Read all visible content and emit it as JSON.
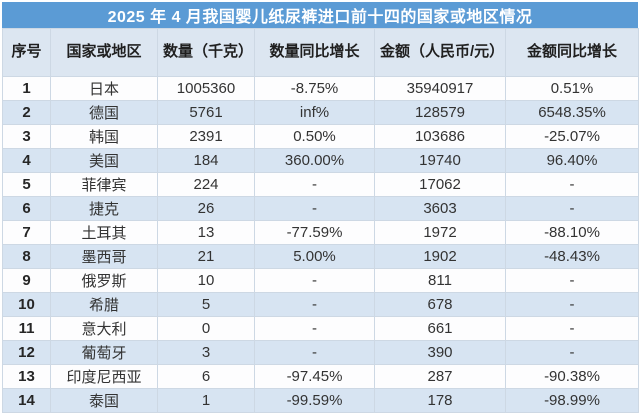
{
  "chart_data": {
    "type": "table",
    "title": "2025 年 4 月我国婴儿纸尿裤进口前十四的国家或地区情况",
    "columns": [
      "序号",
      "国家或地区",
      "数量（千克）",
      "数量同比增长",
      "金额（人民币/元）",
      "金额同比增长"
    ],
    "rows": [
      {
        "index": "1",
        "country": "日本",
        "quantity_kg": "1005360",
        "quantity_yoy": "-8.75%",
        "amount_rmb": "35940917",
        "amount_yoy": "0.51%"
      },
      {
        "index": "2",
        "country": "德国",
        "quantity_kg": "5761",
        "quantity_yoy": "inf%",
        "amount_rmb": "128579",
        "amount_yoy": "6548.35%"
      },
      {
        "index": "3",
        "country": "韩国",
        "quantity_kg": "2391",
        "quantity_yoy": "0.50%",
        "amount_rmb": "103686",
        "amount_yoy": "-25.07%"
      },
      {
        "index": "4",
        "country": "美国",
        "quantity_kg": "184",
        "quantity_yoy": "360.00%",
        "amount_rmb": "19740",
        "amount_yoy": "96.40%"
      },
      {
        "index": "5",
        "country": "菲律宾",
        "quantity_kg": "224",
        "quantity_yoy": "-",
        "amount_rmb": "17062",
        "amount_yoy": "-"
      },
      {
        "index": "6",
        "country": "捷克",
        "quantity_kg": "26",
        "quantity_yoy": "-",
        "amount_rmb": "3603",
        "amount_yoy": "-"
      },
      {
        "index": "7",
        "country": "土耳其",
        "quantity_kg": "13",
        "quantity_yoy": "-77.59%",
        "amount_rmb": "1972",
        "amount_yoy": "-88.10%"
      },
      {
        "index": "8",
        "country": "墨西哥",
        "quantity_kg": "21",
        "quantity_yoy": "5.00%",
        "amount_rmb": "1902",
        "amount_yoy": "-48.43%"
      },
      {
        "index": "9",
        "country": "俄罗斯",
        "quantity_kg": "10",
        "quantity_yoy": "-",
        "amount_rmb": "811",
        "amount_yoy": "-"
      },
      {
        "index": "10",
        "country": "希腊",
        "quantity_kg": "5",
        "quantity_yoy": "-",
        "amount_rmb": "678",
        "amount_yoy": "-"
      },
      {
        "index": "11",
        "country": "意大利",
        "quantity_kg": "0",
        "quantity_yoy": "-",
        "amount_rmb": "661",
        "amount_yoy": "-"
      },
      {
        "index": "12",
        "country": "葡萄牙",
        "quantity_kg": "3",
        "quantity_yoy": "-",
        "amount_rmb": "390",
        "amount_yoy": "-"
      },
      {
        "index": "13",
        "country": "印度尼西亚",
        "quantity_kg": "6",
        "quantity_yoy": "-97.45%",
        "amount_rmb": "287",
        "amount_yoy": "-90.38%"
      },
      {
        "index": "14",
        "country": "泰国",
        "quantity_kg": "1",
        "quantity_yoy": "-99.59%",
        "amount_rmb": "178",
        "amount_yoy": "-98.99%"
      }
    ]
  },
  "colors": {
    "title_bg": "#5b9bd5",
    "title_text": "#ffffff",
    "header_bg": "#dce6f1",
    "row_bg": "#fdfdfe",
    "row_alt_bg": "#d7e4f2",
    "border": "#cdd8e4",
    "text": "#333333",
    "header_text": "#1f1f1f"
  }
}
